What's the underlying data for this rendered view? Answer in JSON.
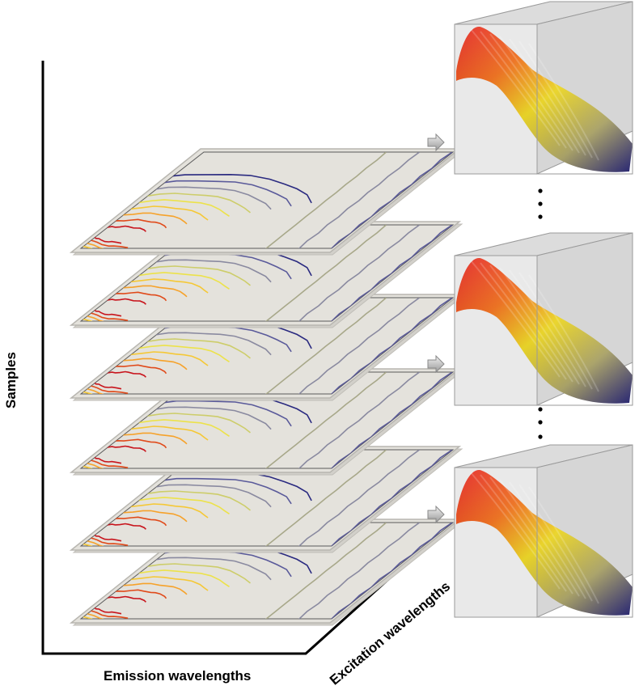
{
  "axes": {
    "samples": "Samples",
    "emission": "Emission wavelengths",
    "excitation": "Excitation wavelengths"
  },
  "colors": {
    "contour_ramp": [
      "#c8141c",
      "#e04a1a",
      "#f07a1c",
      "#f6a22a",
      "#f5c836",
      "#ece24a",
      "#cdcd6a",
      "#a8a88a",
      "#8a8aa0",
      "#5a5a9a",
      "#2a2a80"
    ],
    "surface_top": "#e01010",
    "surface_mid": "#f6e020",
    "surface_low": "#2c2a80",
    "plate_fill": "#e4e2dc",
    "cube_edge": "#9a9a9a"
  },
  "diagram": {
    "sample_slices": 6,
    "cubes": 3,
    "ellipsis": "⋮"
  }
}
